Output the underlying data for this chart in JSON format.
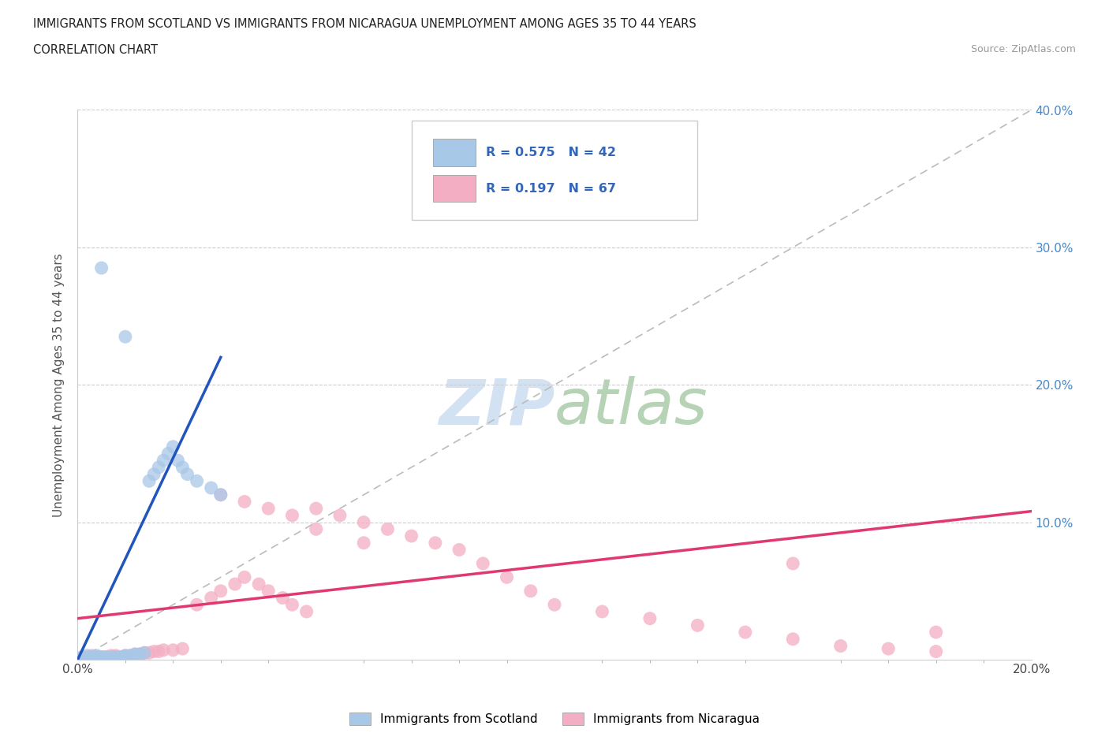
{
  "title_line1": "IMMIGRANTS FROM SCOTLAND VS IMMIGRANTS FROM NICARAGUA UNEMPLOYMENT AMONG AGES 35 TO 44 YEARS",
  "title_line2": "CORRELATION CHART",
  "source_text": "Source: ZipAtlas.com",
  "ylabel": "Unemployment Among Ages 35 to 44 years",
  "xlim": [
    0.0,
    0.2
  ],
  "ylim": [
    0.0,
    0.4
  ],
  "xticks": [
    0.0,
    0.05,
    0.1,
    0.15,
    0.2
  ],
  "yticks": [
    0.0,
    0.1,
    0.2,
    0.3,
    0.4
  ],
  "xtick_labels": [
    "0.0%",
    "",
    "",
    "",
    "20.0%"
  ],
  "ytick_labels_right": [
    "",
    "10.0%",
    "20.0%",
    "30.0%",
    "40.0%"
  ],
  "scotland_color": "#a8c8e8",
  "nicaragua_color": "#f4aec4",
  "scotland_line_color": "#2255bb",
  "nicaragua_line_color": "#e03870",
  "scotland_R": 0.575,
  "scotland_N": 42,
  "nicaragua_R": 0.197,
  "nicaragua_N": 67,
  "background_color": "#ffffff",
  "grid_color": "#cccccc",
  "legend_label_scotland": "Immigrants from Scotland",
  "legend_label_nicaragua": "Immigrants from Nicaragua",
  "scot_x": [
    0.0,
    0.001,
    0.001,
    0.002,
    0.002,
    0.002,
    0.003,
    0.003,
    0.003,
    0.004,
    0.004,
    0.004,
    0.005,
    0.005,
    0.005,
    0.006,
    0.006,
    0.007,
    0.007,
    0.008,
    0.008,
    0.009,
    0.01,
    0.01,
    0.011,
    0.012,
    0.013,
    0.014,
    0.015,
    0.016,
    0.017,
    0.018,
    0.019,
    0.02,
    0.021,
    0.022,
    0.023,
    0.025,
    0.028,
    0.03,
    0.005,
    0.01
  ],
  "scot_y": [
    0.0,
    0.001,
    0.002,
    0.0,
    0.001,
    0.003,
    0.0,
    0.001,
    0.002,
    0.001,
    0.002,
    0.003,
    0.0,
    0.001,
    0.002,
    0.001,
    0.002,
    0.001,
    0.002,
    0.001,
    0.002,
    0.002,
    0.002,
    0.003,
    0.003,
    0.004,
    0.004,
    0.005,
    0.13,
    0.135,
    0.14,
    0.145,
    0.15,
    0.155,
    0.145,
    0.14,
    0.135,
    0.13,
    0.125,
    0.12,
    0.285,
    0.235
  ],
  "nica_x": [
    0.0,
    0.001,
    0.001,
    0.002,
    0.002,
    0.003,
    0.003,
    0.004,
    0.004,
    0.005,
    0.005,
    0.006,
    0.006,
    0.007,
    0.007,
    0.008,
    0.008,
    0.009,
    0.01,
    0.01,
    0.011,
    0.012,
    0.013,
    0.014,
    0.015,
    0.016,
    0.017,
    0.018,
    0.02,
    0.022,
    0.025,
    0.028,
    0.03,
    0.033,
    0.035,
    0.038,
    0.04,
    0.043,
    0.045,
    0.048,
    0.05,
    0.055,
    0.06,
    0.065,
    0.07,
    0.075,
    0.08,
    0.085,
    0.09,
    0.095,
    0.1,
    0.11,
    0.12,
    0.13,
    0.14,
    0.15,
    0.16,
    0.17,
    0.18,
    0.03,
    0.035,
    0.04,
    0.045,
    0.05,
    0.06,
    0.15,
    0.18
  ],
  "nica_y": [
    0.0,
    0.001,
    0.002,
    0.001,
    0.002,
    0.001,
    0.003,
    0.001,
    0.002,
    0.001,
    0.002,
    0.001,
    0.002,
    0.001,
    0.003,
    0.002,
    0.003,
    0.002,
    0.002,
    0.003,
    0.003,
    0.004,
    0.004,
    0.005,
    0.005,
    0.006,
    0.006,
    0.007,
    0.007,
    0.008,
    0.04,
    0.045,
    0.05,
    0.055,
    0.06,
    0.055,
    0.05,
    0.045,
    0.04,
    0.035,
    0.11,
    0.105,
    0.1,
    0.095,
    0.09,
    0.085,
    0.08,
    0.07,
    0.06,
    0.05,
    0.04,
    0.035,
    0.03,
    0.025,
    0.02,
    0.015,
    0.01,
    0.008,
    0.006,
    0.12,
    0.115,
    0.11,
    0.105,
    0.095,
    0.085,
    0.07,
    0.02
  ],
  "scot_line_x": [
    0.0,
    0.03
  ],
  "scot_line_y": [
    0.0,
    0.22
  ],
  "nica_line_x": [
    0.0,
    0.2
  ],
  "nica_line_y": [
    0.03,
    0.108
  ]
}
